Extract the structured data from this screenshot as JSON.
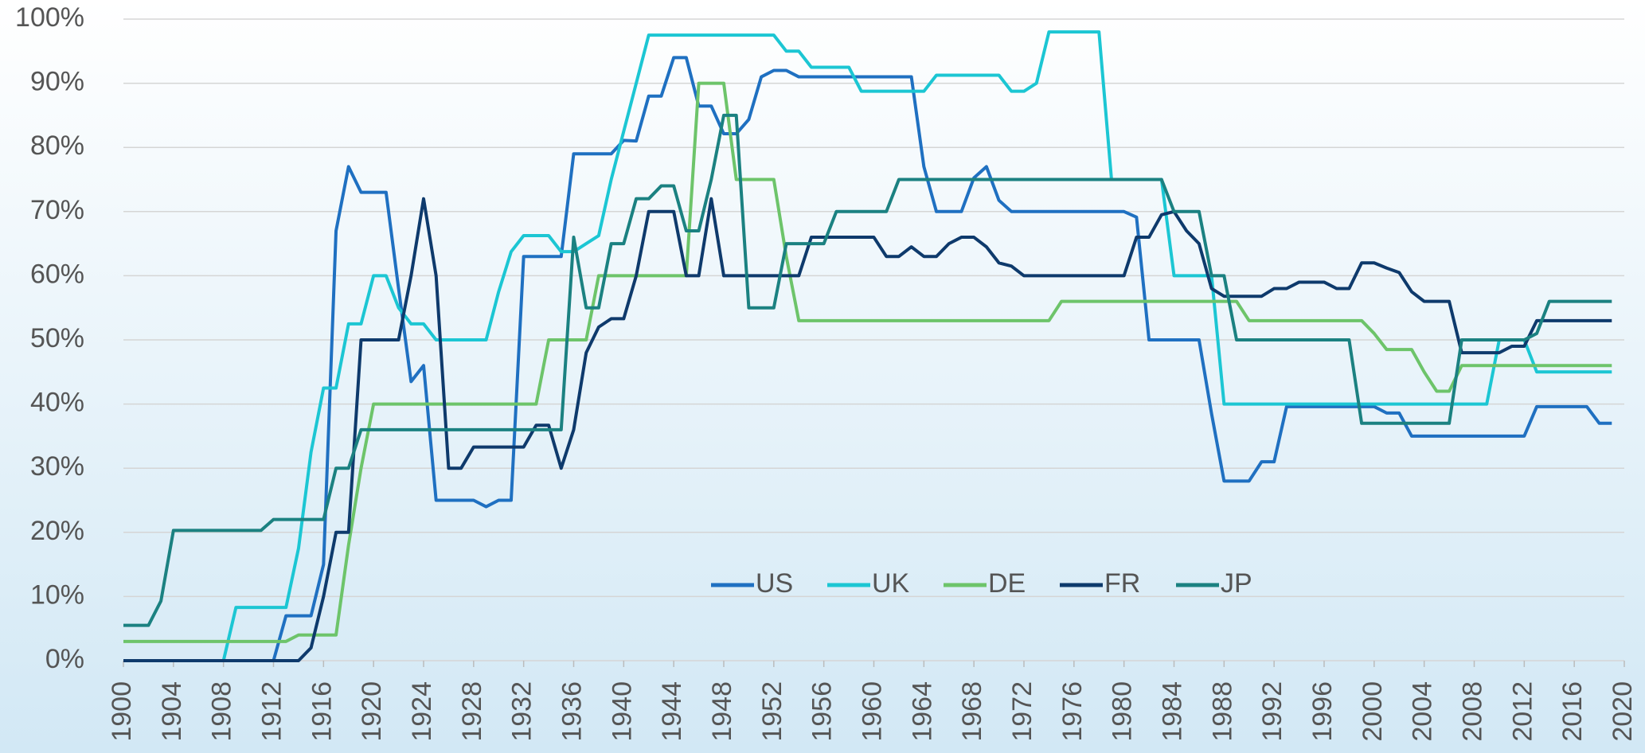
{
  "chart_data": {
    "type": "line",
    "x": [
      1900,
      1901,
      1902,
      1903,
      1904,
      1905,
      1906,
      1907,
      1908,
      1909,
      1910,
      1911,
      1912,
      1913,
      1914,
      1915,
      1916,
      1917,
      1918,
      1919,
      1920,
      1921,
      1922,
      1923,
      1924,
      1925,
      1926,
      1927,
      1928,
      1929,
      1930,
      1931,
      1932,
      1933,
      1934,
      1935,
      1936,
      1937,
      1938,
      1939,
      1940,
      1941,
      1942,
      1943,
      1944,
      1945,
      1946,
      1947,
      1948,
      1949,
      1950,
      1951,
      1952,
      1953,
      1954,
      1955,
      1956,
      1957,
      1958,
      1959,
      1960,
      1961,
      1962,
      1963,
      1964,
      1965,
      1966,
      1967,
      1968,
      1969,
      1970,
      1971,
      1972,
      1973,
      1974,
      1975,
      1976,
      1977,
      1978,
      1979,
      1980,
      1981,
      1982,
      1983,
      1984,
      1985,
      1986,
      1987,
      1988,
      1989,
      1990,
      1991,
      1992,
      1993,
      1994,
      1995,
      1996,
      1997,
      1998,
      1999,
      2000,
      2001,
      2002,
      2003,
      2004,
      2005,
      2006,
      2007,
      2008,
      2009,
      2010,
      2011,
      2012,
      2013,
      2014,
      2015,
      2016,
      2017,
      2018,
      2019
    ],
    "series": [
      {
        "name": "US",
        "color": "#1f70c1",
        "values": [
          0,
          0,
          0,
          0,
          0,
          0,
          0,
          0,
          0,
          0,
          0,
          0,
          0,
          7,
          7,
          7,
          15,
          67,
          77,
          73,
          73,
          73,
          58,
          43.5,
          46,
          25,
          25,
          25,
          25,
          24,
          25,
          25,
          63,
          63,
          63,
          63,
          79,
          79,
          79,
          79,
          81.1,
          81,
          88,
          88,
          94,
          94,
          86.45,
          86.45,
          82.13,
          82.13,
          84.36,
          91,
          92,
          92,
          91,
          91,
          91,
          91,
          91,
          91,
          91,
          91,
          91,
          91,
          77,
          70,
          70,
          70,
          75.25,
          77,
          71.75,
          70,
          70,
          70,
          70,
          70,
          70,
          70,
          70,
          70,
          70,
          69.125,
          50,
          50,
          50,
          50,
          50,
          38.5,
          28,
          28,
          28,
          31,
          31,
          39.6,
          39.6,
          39.6,
          39.6,
          39.6,
          39.6,
          39.6,
          39.6,
          38.6,
          38.6,
          35,
          35,
          35,
          35,
          35,
          35,
          35,
          35,
          35,
          35,
          39.6,
          39.6,
          39.6,
          39.6,
          39.6,
          37,
          37
        ]
      },
      {
        "name": "UK",
        "color": "#1cc6d3",
        "values": [
          0,
          0,
          0,
          0,
          0,
          0,
          0,
          0,
          0,
          8.3,
          8.3,
          8.3,
          8.3,
          8.3,
          17.5,
          32.5,
          42.5,
          42.5,
          52.5,
          52.5,
          60,
          60,
          55,
          52.5,
          52.5,
          50,
          50,
          50,
          50,
          50,
          57.5,
          63.75,
          66.25,
          66.25,
          66.25,
          63.75,
          63.75,
          65,
          66.25,
          75,
          82.5,
          90,
          97.5,
          97.5,
          97.5,
          97.5,
          97.5,
          97.5,
          97.5,
          97.5,
          97.5,
          97.5,
          97.5,
          95,
          95,
          92.5,
          92.5,
          92.5,
          92.5,
          88.75,
          88.75,
          88.75,
          88.75,
          88.75,
          88.75,
          91.25,
          91.25,
          91.25,
          91.25,
          91.25,
          91.25,
          88.75,
          88.75,
          90,
          98,
          98,
          98,
          98,
          98,
          75,
          75,
          75,
          75,
          75,
          60,
          60,
          60,
          60,
          40,
          40,
          40,
          40,
          40,
          40,
          40,
          40,
          40,
          40,
          40,
          40,
          40,
          40,
          40,
          40,
          40,
          40,
          40,
          40,
          40,
          40,
          50,
          50,
          50,
          45,
          45,
          45,
          45,
          45,
          45,
          45
        ]
      },
      {
        "name": "DE",
        "color": "#6dc46a",
        "values": [
          3,
          3,
          3,
          3,
          3,
          3,
          3,
          3,
          3,
          3,
          3,
          3,
          3,
          3,
          4,
          4,
          4,
          4,
          18,
          30,
          40,
          40,
          40,
          40,
          40,
          40,
          40,
          40,
          40,
          40,
          40,
          40,
          40,
          40,
          50,
          50,
          50,
          50,
          60,
          60,
          60,
          60,
          60,
          60,
          60,
          60,
          90,
          90,
          90,
          75,
          75,
          75,
          75,
          63,
          53,
          53,
          53,
          53,
          53,
          53,
          53,
          53,
          53,
          53,
          53,
          53,
          53,
          53,
          53,
          53,
          53,
          53,
          53,
          53,
          53,
          56,
          56,
          56,
          56,
          56,
          56,
          56,
          56,
          56,
          56,
          56,
          56,
          56,
          56,
          56,
          53,
          53,
          53,
          53,
          53,
          53,
          53,
          53,
          53,
          53,
          51,
          48.5,
          48.5,
          48.5,
          45,
          42,
          42,
          46,
          46,
          46,
          46,
          46,
          46,
          46,
          46,
          46,
          46,
          46,
          46,
          46
        ]
      },
      {
        "name": "FR",
        "color": "#0e3a6c",
        "values": [
          0,
          0,
          0,
          0,
          0,
          0,
          0,
          0,
          0,
          0,
          0,
          0,
          0,
          0,
          0,
          2,
          10,
          20,
          20,
          50,
          50,
          50,
          50,
          60,
          72,
          60,
          30,
          30,
          33.3,
          33.3,
          33.3,
          33.3,
          33.3,
          36.7,
          36.7,
          30,
          36,
          48,
          52,
          53.3,
          53.3,
          60,
          70,
          70,
          70,
          60,
          60,
          72,
          60,
          60,
          60,
          60,
          60,
          60,
          60,
          66,
          66,
          66,
          66,
          66,
          66,
          63,
          63,
          64.5,
          63,
          63,
          65,
          66,
          66,
          64.5,
          62,
          61.5,
          60,
          60,
          60,
          60,
          60,
          60,
          60,
          60,
          60,
          66,
          66,
          69.5,
          70,
          67,
          65,
          58,
          56.8,
          56.8,
          56.8,
          56.8,
          58,
          58,
          59,
          59,
          59,
          58,
          58,
          62,
          62,
          61.2,
          60.5,
          57.5,
          56,
          56,
          56,
          48,
          48,
          48,
          48,
          49,
          49,
          53,
          53,
          53,
          53,
          53,
          53,
          53
        ]
      },
      {
        "name": "JP",
        "color": "#1b8181",
        "values": [
          5.5,
          5.5,
          5.5,
          9.3,
          20.3,
          20.3,
          20.3,
          20.3,
          20.3,
          20.3,
          20.3,
          20.3,
          22,
          22,
          22,
          22,
          22,
          30,
          30,
          36,
          36,
          36,
          36,
          36,
          36,
          36,
          36,
          36,
          36,
          36,
          36,
          36,
          36,
          36,
          36,
          36,
          66,
          55,
          55,
          65,
          65,
          72,
          72,
          74,
          74,
          67,
          67,
          75,
          85,
          85,
          55,
          55,
          55,
          65,
          65,
          65,
          65,
          70,
          70,
          70,
          70,
          70,
          75,
          75,
          75,
          75,
          75,
          75,
          75,
          75,
          75,
          75,
          75,
          75,
          75,
          75,
          75,
          75,
          75,
          75,
          75,
          75,
          75,
          75,
          70,
          70,
          70,
          60,
          60,
          50,
          50,
          50,
          50,
          50,
          50,
          50,
          50,
          50,
          50,
          37,
          37,
          37,
          37,
          37,
          37,
          37,
          37,
          50,
          50,
          50,
          50,
          50,
          50,
          51,
          56,
          56,
          56,
          56,
          56,
          56
        ]
      }
    ],
    "xlim": [
      1900,
      2020
    ],
    "xticks": [
      1900,
      1904,
      1908,
      1912,
      1916,
      1920,
      1924,
      1928,
      1932,
      1936,
      1940,
      1944,
      1948,
      1952,
      1956,
      1960,
      1964,
      1968,
      1972,
      1976,
      1980,
      1984,
      1988,
      1992,
      1996,
      2000,
      2004,
      2008,
      2012,
      2016,
      2020
    ],
    "ylim": [
      0,
      100
    ],
    "yticks": [
      {
        "value": 0,
        "label": "0%"
      },
      {
        "value": 10,
        "label": "10%"
      },
      {
        "value": 20,
        "label": "20%"
      },
      {
        "value": 30,
        "label": "30%"
      },
      {
        "value": 40,
        "label": "40%"
      },
      {
        "value": 50,
        "label": "50%"
      },
      {
        "value": 60,
        "label": "60%"
      },
      {
        "value": 70,
        "label": "70%"
      },
      {
        "value": 80,
        "label": "80%"
      },
      {
        "value": 90,
        "label": "90%"
      },
      {
        "value": 100,
        "label": "100%"
      }
    ],
    "grid": true
  }
}
